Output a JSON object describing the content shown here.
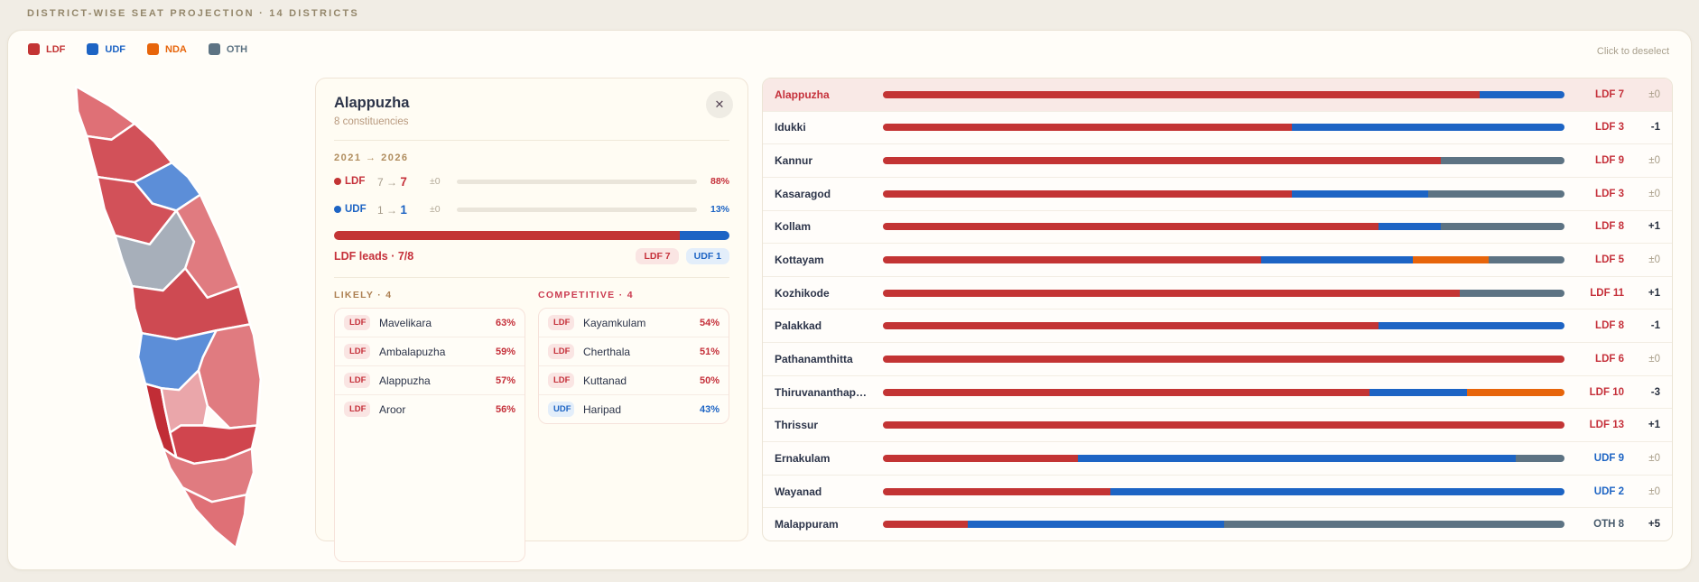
{
  "page": {
    "header": "DISTRICT-WISE SEAT PROJECTION · 14 DISTRICTS",
    "deselect_hint": "Click to deselect"
  },
  "colors": {
    "ldf": "#c33434",
    "udf": "#1d64c4",
    "nda": "#e7650b",
    "oth": "#5d7383",
    "ldf_text": "#c5303a",
    "udf_text": "#1d64c4",
    "oth_text": "#46596b",
    "ldf_soft": "#fae5e3",
    "udf_soft": "#e3eefa"
  },
  "legend": {
    "items": [
      {
        "label": "LDF",
        "party": "ldf"
      },
      {
        "label": "UDF",
        "party": "udf"
      },
      {
        "label": "NDA",
        "party": "nda"
      },
      {
        "label": "OTH",
        "party": "oth"
      }
    ]
  },
  "detail": {
    "title": "Alappuzha",
    "subtitle": "8 constituencies",
    "period": "2021 → 2026",
    "close_glyph": "✕",
    "trend_rows": [
      {
        "party": "LDF",
        "key": "ldf",
        "from": "7",
        "to": "7",
        "delta": "±0",
        "pct": "88%",
        "pct_value": 88
      },
      {
        "party": "UDF",
        "key": "udf",
        "from": "1",
        "to": "1",
        "delta": "±0",
        "pct": "13%",
        "pct_value": 13
      }
    ],
    "lead_text": "LDF leads · 7/8",
    "lead_segments": [
      {
        "party": "ldf",
        "fraction": 87.5
      },
      {
        "party": "udf",
        "fraction": 12.5
      }
    ],
    "badges": [
      {
        "label": "LDF 7",
        "party": "ldf"
      },
      {
        "label": "UDF 1",
        "party": "udf"
      }
    ],
    "groups": [
      {
        "title": "LIKELY · 4",
        "title_color": "#ad8052",
        "tall": true,
        "items": [
          {
            "party": "LDF",
            "key": "ldf",
            "name": "Mavelikara",
            "pct": "63%"
          },
          {
            "party": "LDF",
            "key": "ldf",
            "name": "Ambalapuzha",
            "pct": "59%"
          },
          {
            "party": "LDF",
            "key": "ldf",
            "name": "Alappuzha",
            "pct": "57%"
          },
          {
            "party": "LDF",
            "key": "ldf",
            "name": "Aroor",
            "pct": "56%"
          }
        ]
      },
      {
        "title": "COMPETITIVE · 4",
        "title_color": "#cb3b50",
        "tall": false,
        "items": [
          {
            "party": "LDF",
            "key": "ldf",
            "name": "Kayamkulam",
            "pct": "54%"
          },
          {
            "party": "LDF",
            "key": "ldf",
            "name": "Cherthala",
            "pct": "51%"
          },
          {
            "party": "LDF",
            "key": "ldf",
            "name": "Kuttanad",
            "pct": "50%"
          },
          {
            "party": "UDF",
            "key": "udf",
            "name": "Haripad",
            "pct": "43%"
          }
        ]
      }
    ]
  },
  "districts": [
    {
      "name": "Alappuzha",
      "selected": true,
      "winner": "LDF 7",
      "winner_party": "ldf",
      "change": "±0",
      "segments": [
        [
          "ldf",
          7
        ],
        [
          "udf",
          1
        ]
      ]
    },
    {
      "name": "Idukki",
      "winner": "LDF 3",
      "winner_party": "ldf",
      "change": "-1",
      "segments": [
        [
          "ldf",
          3
        ],
        [
          "udf",
          2
        ]
      ]
    },
    {
      "name": "Kannur",
      "winner": "LDF 9",
      "winner_party": "ldf",
      "change": "±0",
      "segments": [
        [
          "ldf",
          9
        ],
        [
          "oth",
          2
        ]
      ]
    },
    {
      "name": "Kasaragod",
      "winner": "LDF 3",
      "winner_party": "ldf",
      "change": "±0",
      "segments": [
        [
          "ldf",
          3
        ],
        [
          "udf",
          1
        ],
        [
          "oth",
          1
        ]
      ]
    },
    {
      "name": "Kollam",
      "winner": "LDF 8",
      "winner_party": "ldf",
      "change": "+1",
      "segments": [
        [
          "ldf",
          8
        ],
        [
          "udf",
          1
        ],
        [
          "oth",
          2
        ]
      ]
    },
    {
      "name": "Kottayam",
      "winner": "LDF 5",
      "winner_party": "ldf",
      "change": "±0",
      "segments": [
        [
          "ldf",
          5
        ],
        [
          "udf",
          2
        ],
        [
          "nda",
          1
        ],
        [
          "oth",
          1
        ]
      ]
    },
    {
      "name": "Kozhikode",
      "winner": "LDF 11",
      "winner_party": "ldf",
      "change": "+1",
      "segments": [
        [
          "ldf",
          11
        ],
        [
          "oth",
          2
        ]
      ]
    },
    {
      "name": "Palakkad",
      "winner": "LDF 8",
      "winner_party": "ldf",
      "change": "-1",
      "segments": [
        [
          "ldf",
          8
        ],
        [
          "udf",
          3
        ]
      ]
    },
    {
      "name": "Pathanamthitta",
      "winner": "LDF 6",
      "winner_party": "ldf",
      "change": "±0",
      "segments": [
        [
          "ldf",
          6
        ]
      ]
    },
    {
      "name": "Thiruvananthap…",
      "winner": "LDF 10",
      "winner_party": "ldf",
      "change": "-3",
      "segments": [
        [
          "ldf",
          10
        ],
        [
          "udf",
          2
        ],
        [
          "nda",
          2
        ]
      ]
    },
    {
      "name": "Thrissur",
      "winner": "LDF 13",
      "winner_party": "ldf",
      "change": "+1",
      "segments": [
        [
          "ldf",
          13
        ]
      ]
    },
    {
      "name": "Ernakulam",
      "winner": "UDF 9",
      "winner_party": "udf",
      "change": "±0",
      "segments": [
        [
          "ldf",
          4
        ],
        [
          "udf",
          9
        ],
        [
          "oth",
          1
        ]
      ]
    },
    {
      "name": "Wayanad",
      "winner": "UDF 2",
      "winner_party": "udf",
      "change": "±0",
      "segments": [
        [
          "ldf",
          1
        ],
        [
          "udf",
          2
        ]
      ]
    },
    {
      "name": "Malappuram",
      "winner": "OTH 8",
      "winner_party": "oth",
      "change": "+5",
      "segments": [
        [
          "ldf",
          2
        ],
        [
          "udf",
          6
        ],
        [
          "oth",
          8
        ]
      ]
    }
  ],
  "map": {
    "regions": [
      {
        "name": "Kasaragod",
        "fill": "#df7076"
      },
      {
        "name": "Kannur",
        "fill": "#d25159"
      },
      {
        "name": "Wayanad",
        "fill": "#5c8ed8"
      },
      {
        "name": "Kozhikode",
        "fill": "#d25159"
      },
      {
        "name": "Malappuram",
        "fill": "#a7afba"
      },
      {
        "name": "Palakkad",
        "fill": "#e07b80"
      },
      {
        "name": "Thrissur",
        "fill": "#ce4a52"
      },
      {
        "name": "Ernakulam",
        "fill": "#5c8ed8"
      },
      {
        "name": "Idukki",
        "fill": "#e07b80"
      },
      {
        "name": "Alappuzha",
        "fill": "#c12d36"
      },
      {
        "name": "Kottayam",
        "fill": "#eaa6aa"
      },
      {
        "name": "Pathanamthitta",
        "fill": "#d0454e"
      },
      {
        "name": "Kollam",
        "fill": "#e07b80"
      },
      {
        "name": "Thiruvananthapuram",
        "fill": "#df7076"
      }
    ]
  }
}
